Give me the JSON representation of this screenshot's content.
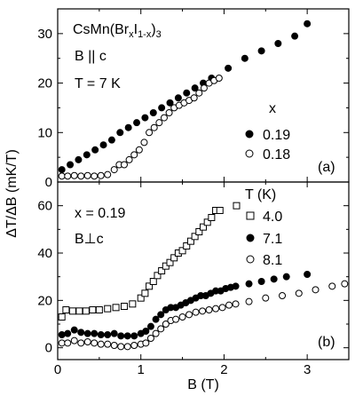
{
  "chart_data": [
    {
      "type": "scatter",
      "panel_label": "(a)",
      "annotations": {
        "material_base": "CsMn(Br",
        "material_sub1": "x",
        "material_mid": "I",
        "material_sub2": "1-x",
        "material_close": ")",
        "material_sub3": "3",
        "field_orientation": "B || c",
        "temperature": "T = 7 K"
      },
      "legend_title": "x",
      "legend_position": "right",
      "xlim": [
        0,
        3.5
      ],
      "ylim": [
        0,
        35
      ],
      "yticks": [
        "0",
        "10",
        "20",
        "30"
      ],
      "series": [
        {
          "name": "0.19",
          "marker": "filled-circle",
          "x": [
            0.05,
            0.15,
            0.25,
            0.35,
            0.45,
            0.55,
            0.65,
            0.75,
            0.85,
            0.95,
            1.05,
            1.15,
            1.25,
            1.35,
            1.45,
            1.55,
            1.65,
            1.75,
            1.85,
            2.05,
            2.25,
            2.45,
            2.65,
            2.85,
            3.0
          ],
          "y": [
            2.5,
            3.5,
            4.5,
            5.5,
            6.5,
            7.5,
            8.5,
            10,
            11,
            12,
            13,
            14,
            15,
            16,
            17,
            18,
            19,
            20,
            21,
            23,
            25,
            26.5,
            28,
            29.5,
            32
          ]
        },
        {
          "name": "0.18",
          "marker": "open-circle",
          "x": [
            0.05,
            0.12,
            0.2,
            0.28,
            0.36,
            0.44,
            0.52,
            0.6,
            0.68,
            0.74,
            0.8,
            0.86,
            0.92,
            0.98,
            1.04,
            1.1,
            1.16,
            1.22,
            1.28,
            1.34,
            1.4,
            1.46,
            1.52,
            1.58,
            1.64,
            1.7,
            1.76,
            1.82,
            1.88,
            1.94
          ],
          "y": [
            1.2,
            1.2,
            1.3,
            1.2,
            1.3,
            1.2,
            1.3,
            1.5,
            2.5,
            3.5,
            3.5,
            4.5,
            5.5,
            6.5,
            8,
            10,
            11,
            12,
            13,
            14,
            15,
            15.5,
            16,
            16.5,
            17,
            18,
            19,
            20,
            20.5,
            21
          ]
        }
      ]
    },
    {
      "type": "scatter",
      "panel_label": "(b)",
      "annotations": {
        "composition": "x = 0.19",
        "field_orientation": "B⊥c"
      },
      "legend_title": "T (K)",
      "legend_position": "right",
      "xlim": [
        0,
        3.5
      ],
      "ylim": [
        -5,
        70
      ],
      "yticks": [
        "0",
        "20",
        "40",
        "60"
      ],
      "series": [
        {
          "name": "4.0",
          "marker": "open-square",
          "x": [
            0.05,
            0.1,
            0.18,
            0.26,
            0.34,
            0.42,
            0.5,
            0.6,
            0.7,
            0.8,
            0.9,
            1.0,
            1.05,
            1.1,
            1.15,
            1.2,
            1.25,
            1.3,
            1.35,
            1.4,
            1.45,
            1.5,
            1.55,
            1.6,
            1.65,
            1.7,
            1.75,
            1.8,
            1.85,
            1.9,
            1.95,
            2.15
          ],
          "y": [
            13,
            16,
            15.5,
            15.5,
            15.5,
            16,
            16,
            16.5,
            17,
            17.5,
            18.5,
            21,
            23,
            26,
            28,
            30.5,
            32.5,
            34.5,
            36,
            38,
            40,
            41,
            43,
            45,
            47,
            49,
            51,
            53,
            55,
            58,
            58,
            60
          ]
        },
        {
          "name": "7.1",
          "marker": "filled-circle",
          "x": [
            0.05,
            0.12,
            0.2,
            0.28,
            0.36,
            0.44,
            0.52,
            0.6,
            0.68,
            0.76,
            0.84,
            0.92,
            1.0,
            1.06,
            1.12,
            1.18,
            1.24,
            1.3,
            1.36,
            1.42,
            1.48,
            1.54,
            1.6,
            1.66,
            1.72,
            1.78,
            1.84,
            1.9,
            1.96,
            2.02,
            2.08,
            2.14,
            2.3,
            2.45,
            2.6,
            2.75,
            3.0
          ],
          "y": [
            5.5,
            6,
            7.5,
            6.5,
            6,
            6,
            5.5,
            5.5,
            6,
            5,
            5,
            5,
            6,
            7,
            9,
            12,
            14,
            16,
            17,
            17,
            18,
            19,
            20,
            21,
            22,
            22,
            23,
            24,
            24,
            25,
            25.5,
            26,
            27,
            28,
            29,
            30,
            31
          ]
        },
        {
          "name": "8.1",
          "marker": "open-circle",
          "x": [
            0.05,
            0.12,
            0.2,
            0.28,
            0.36,
            0.44,
            0.52,
            0.6,
            0.68,
            0.76,
            0.84,
            0.92,
            1.0,
            1.06,
            1.12,
            1.18,
            1.24,
            1.3,
            1.36,
            1.42,
            1.5,
            1.58,
            1.66,
            1.74,
            1.82,
            1.9,
            1.98,
            2.06,
            2.14,
            2.3,
            2.5,
            2.7,
            2.9,
            3.1,
            3.3,
            3.45
          ],
          "y": [
            2,
            2,
            3,
            2,
            2.5,
            2,
            1.5,
            1.5,
            1,
            0.5,
            0.5,
            1,
            1.5,
            2,
            4,
            6,
            8,
            10,
            11.5,
            12,
            13,
            14,
            15,
            15.5,
            16,
            16.5,
            17,
            18,
            18.5,
            19.5,
            21,
            22,
            23,
            24.5,
            26,
            27
          ]
        }
      ]
    }
  ],
  "shared_x": {
    "xlabel": "B (T)",
    "xticks": [
      "0",
      "1",
      "2",
      "3"
    ]
  },
  "shared_y": {
    "ylabel": "ΔT/ΔB (mK/T)"
  }
}
